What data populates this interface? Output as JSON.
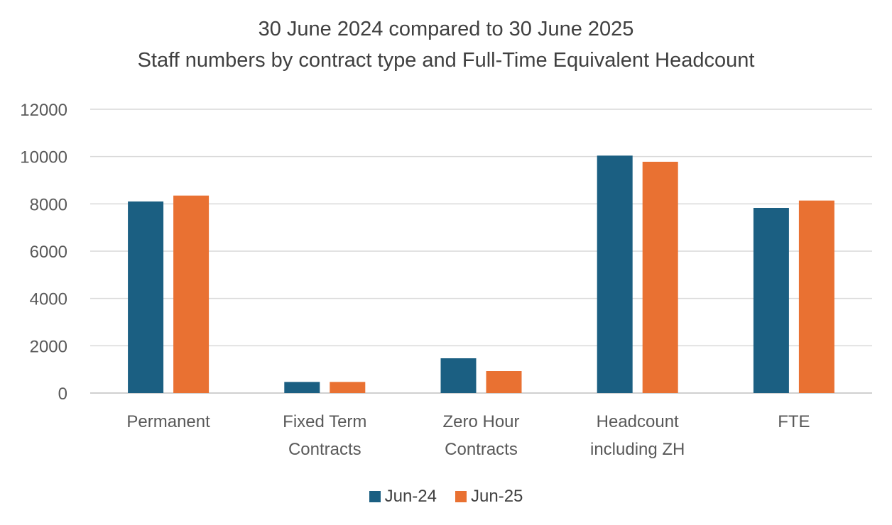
{
  "chart_data": {
    "type": "bar",
    "title_line1": "30 June 2024 compared to 30 June 2025",
    "title_line2": "Staff numbers by contract type and Full-Time Equivalent Headcount",
    "categories": [
      [
        "Permanent"
      ],
      [
        "Fixed Term",
        "Contracts"
      ],
      [
        "Zero Hour",
        "Contracts"
      ],
      [
        "Headcount",
        "including ZH"
      ],
      [
        "FTE"
      ]
    ],
    "series": [
      {
        "name": "Jun-24",
        "color": "#1b5f82",
        "values": [
          8100,
          470,
          1470,
          10040,
          7830
        ]
      },
      {
        "name": "Jun-25",
        "color": "#e97132",
        "values": [
          8350,
          470,
          930,
          9780,
          8140
        ]
      }
    ],
    "ylim": [
      0,
      12000
    ],
    "yticks": [
      0,
      2000,
      4000,
      6000,
      8000,
      10000,
      12000
    ],
    "grid": true,
    "legend_position": "bottom"
  }
}
